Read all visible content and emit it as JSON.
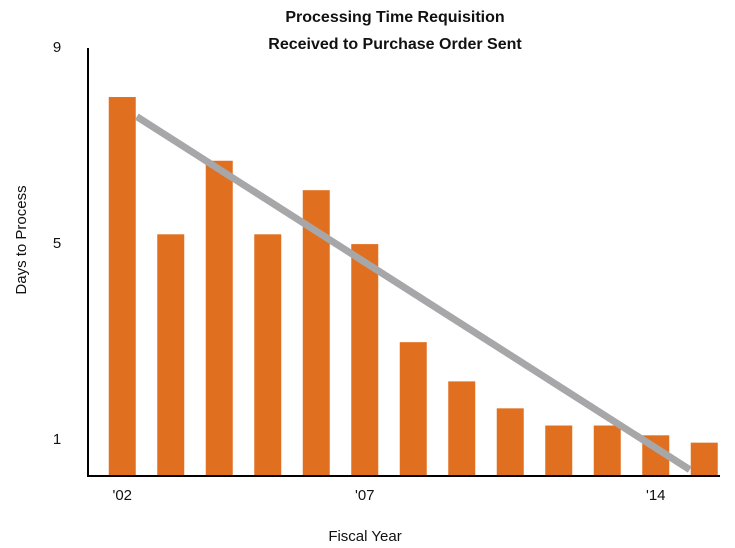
{
  "chart_data": {
    "type": "bar",
    "title": [
      "Processing Time Requisition",
      "Received to Purchase Order Sent"
    ],
    "x_label": "Fiscal Year",
    "y_label": "Days to Process",
    "categories": [
      "'02",
      null,
      null,
      null,
      null,
      "'07",
      null,
      null,
      null,
      null,
      null,
      "'14",
      null
    ],
    "values": [
      8,
      5.2,
      6.7,
      5.2,
      6.1,
      5,
      3,
      2.2,
      1.65,
      1.3,
      1.3,
      1.1,
      0.95
    ],
    "color": "#e07020",
    "trend": {
      "color": "#a7a7a9",
      "values": [
        7.6,
        0.4
      ]
    },
    "ylim": [
      0.27,
      9
    ],
    "yticks": [
      1,
      5,
      9
    ],
    "grid": false
  }
}
